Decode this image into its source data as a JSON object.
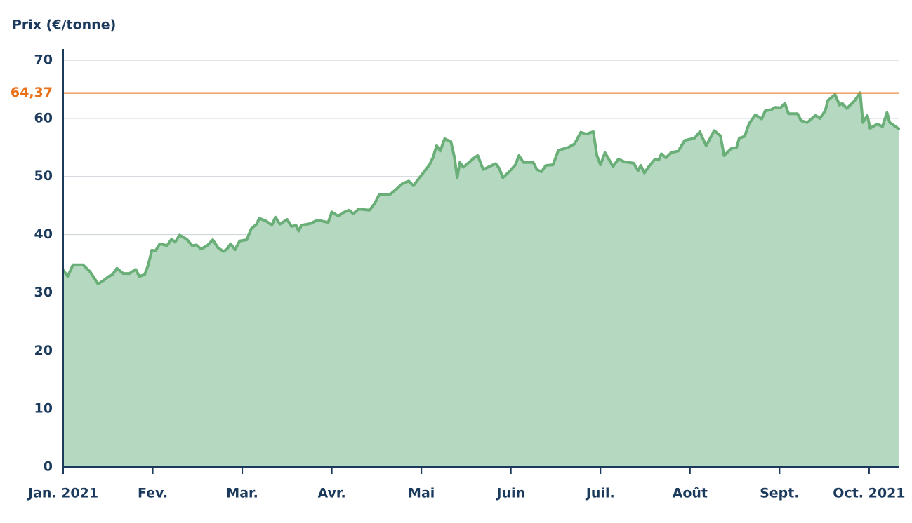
{
  "chart_data": {
    "type": "area",
    "y_label": "Prix (€/tonne)",
    "xlim": [
      0,
      9.33
    ],
    "xticks": [
      {
        "value": 0,
        "label": "Jan. 2021"
      },
      {
        "value": 1,
        "label": "Fev."
      },
      {
        "value": 2,
        "label": "Mar."
      },
      {
        "value": 3,
        "label": "Avr."
      },
      {
        "value": 4,
        "label": "Mai"
      },
      {
        "value": 5,
        "label": "Juin"
      },
      {
        "value": 6,
        "label": "Juil."
      },
      {
        "value": 7,
        "label": "Août"
      },
      {
        "value": 8,
        "label": "Sept."
      },
      {
        "value": 9,
        "label": "Oct. 2021"
      }
    ],
    "ylim": [
      0,
      70
    ],
    "yticks": [
      0,
      10,
      20,
      30,
      40,
      50,
      60,
      70
    ],
    "grid": true,
    "reference_line": {
      "value": 64.37,
      "label": "64,37",
      "color": "#e8711a"
    },
    "series": [
      {
        "color": "#6aaf78",
        "fill": "#b5d8c0",
        "x": [
          0,
          0.05,
          0.11,
          0.22,
          0.3,
          0.39,
          0.45,
          0.51,
          0.55,
          0.6,
          0.67,
          0.74,
          0.81,
          0.85,
          0.91,
          0.95,
          0.99,
          1.03,
          1.08,
          1.16,
          1.21,
          1.25,
          1.3,
          1.38,
          1.44,
          1.49,
          1.54,
          1.61,
          1.67,
          1.73,
          1.79,
          1.83,
          1.87,
          1.92,
          1.97,
          2.05,
          2.1,
          2.16,
          2.19,
          2.27,
          2.33,
          2.37,
          2.42,
          2.5,
          2.55,
          2.6,
          2.63,
          2.66,
          2.76,
          2.84,
          2.96,
          3.0,
          3.07,
          3.13,
          3.19,
          3.24,
          3.3,
          3.42,
          3.48,
          3.53,
          3.65,
          3.72,
          3.79,
          3.86,
          3.91,
          3.98,
          4.04,
          4.09,
          4.13,
          4.17,
          4.21,
          4.26,
          4.33,
          4.37,
          4.4,
          4.43,
          4.47,
          4.53,
          4.59,
          4.63,
          4.69,
          4.76,
          4.83,
          4.87,
          4.91,
          4.98,
          5.05,
          5.09,
          5.14,
          5.25,
          5.29,
          5.34,
          5.39,
          5.47,
          5.53,
          5.64,
          5.71,
          5.78,
          5.84,
          5.92,
          5.96,
          6.0,
          6.05,
          6.1,
          6.14,
          6.2,
          6.27,
          6.37,
          6.42,
          6.45,
          6.49,
          6.54,
          6.61,
          6.65,
          6.68,
          6.73,
          6.79,
          6.87,
          6.94,
          7.05,
          7.11,
          7.18,
          7.27,
          7.34,
          7.38,
          7.46,
          7.52,
          7.55,
          7.61,
          7.66,
          7.73,
          7.8,
          7.84,
          7.91,
          7.95,
          8.01,
          8.06,
          8.1,
          8.2,
          8.24,
          8.31,
          8.4,
          8.45,
          8.51,
          8.54,
          8.62,
          8.67,
          8.7,
          8.75,
          8.83,
          8.9,
          8.93,
          8.98,
          9.01,
          9.09,
          9.15,
          9.2,
          9.23,
          9.33
        ],
        "values": [
          33.9,
          32.8,
          34.8,
          34.8,
          33.6,
          31.5,
          32.1,
          32.8,
          33.1,
          34.2,
          33.3,
          33.3,
          34.0,
          32.8,
          33.1,
          34.8,
          37.3,
          37.2,
          38.4,
          38.1,
          39.2,
          38.7,
          39.9,
          39.2,
          38.1,
          38.2,
          37.5,
          38.1,
          39.1,
          37.7,
          37.1,
          37.5,
          38.4,
          37.4,
          38.9,
          39.1,
          41.0,
          41.8,
          42.8,
          42.3,
          41.6,
          43.0,
          41.8,
          42.6,
          41.4,
          41.6,
          40.6,
          41.6,
          41.9,
          42.5,
          42.1,
          43.9,
          43.2,
          43.8,
          44.2,
          43.6,
          44.4,
          44.2,
          45.4,
          46.9,
          46.9,
          47.8,
          48.8,
          49.2,
          48.4,
          49.8,
          51.0,
          52.0,
          53.3,
          55.3,
          54.4,
          56.5,
          56.0,
          53.2,
          49.8,
          52.4,
          51.6,
          52.4,
          53.2,
          53.6,
          51.2,
          51.7,
          52.2,
          51.4,
          49.8,
          50.8,
          52.0,
          53.6,
          52.4,
          52.4,
          51.2,
          50.8,
          51.9,
          52.0,
          54.5,
          55.0,
          55.6,
          57.6,
          57.3,
          57.7,
          53.6,
          52.0,
          54.1,
          52.8,
          51.7,
          53.0,
          52.5,
          52.3,
          51.0,
          51.9,
          50.6,
          51.7,
          53.0,
          52.8,
          53.9,
          53.2,
          54.1,
          54.4,
          56.2,
          56.6,
          57.7,
          55.3,
          57.9,
          57.0,
          53.6,
          54.8,
          55.0,
          56.6,
          56.9,
          59.1,
          60.6,
          59.9,
          61.3,
          61.5,
          61.9,
          61.8,
          62.6,
          60.8,
          60.8,
          59.6,
          59.3,
          60.5,
          60.0,
          61.3,
          63.1,
          64.1,
          62.3,
          62.6,
          61.7,
          62.9,
          64.4,
          59.3,
          60.5,
          58.3,
          59.0,
          58.6,
          61.0,
          59.3,
          58.2
        ]
      }
    ]
  }
}
